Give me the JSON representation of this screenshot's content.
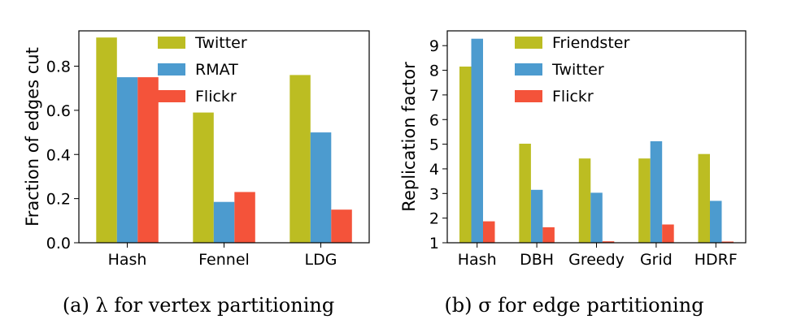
{
  "colors": {
    "olive": "#bcbd22",
    "blue": "#4c9bcf",
    "red": "#f4533a"
  },
  "chart_data": [
    {
      "type": "bar",
      "ylabel": "Fraction of edges cut",
      "caption": "(a) λ for vertex partitioning",
      "categories": [
        "Hash",
        "Fennel",
        "LDG"
      ],
      "ylim": [
        0,
        0.96
      ],
      "yticks": [
        "0.0",
        "0.2",
        "0.4",
        "0.6",
        "0.8"
      ],
      "legend_position": "top-center",
      "grid": false,
      "series": [
        {
          "name": "Twitter",
          "color": "#bcbd22",
          "values": [
            0.93,
            0.59,
            0.76
          ]
        },
        {
          "name": "RMAT",
          "color": "#4c9bcf",
          "values": [
            0.75,
            0.185,
            0.5
          ]
        },
        {
          "name": "Flickr",
          "color": "#f4533a",
          "values": [
            0.75,
            0.23,
            0.15
          ]
        }
      ]
    },
    {
      "type": "bar",
      "ylabel": "Replication factor",
      "caption": "(b) σ for edge partitioning",
      "categories": [
        "Hash",
        "DBH",
        "Greedy",
        "Grid",
        "HDRF"
      ],
      "ylim": [
        1,
        9.6
      ],
      "yticks": [
        "1",
        "2",
        "3",
        "4",
        "5",
        "6",
        "7",
        "8",
        "9"
      ],
      "legend_position": "top-center",
      "grid": false,
      "series": [
        {
          "name": "Friendster",
          "color": "#bcbd22",
          "values": [
            8.15,
            5.02,
            4.42,
            4.42,
            4.6
          ]
        },
        {
          "name": "Twitter",
          "color": "#4c9bcf",
          "values": [
            9.28,
            3.15,
            3.03,
            5.12,
            2.7
          ]
        },
        {
          "name": "Flickr",
          "color": "#f4533a",
          "values": [
            1.87,
            1.63,
            1.06,
            1.74,
            1.05
          ]
        }
      ]
    }
  ]
}
